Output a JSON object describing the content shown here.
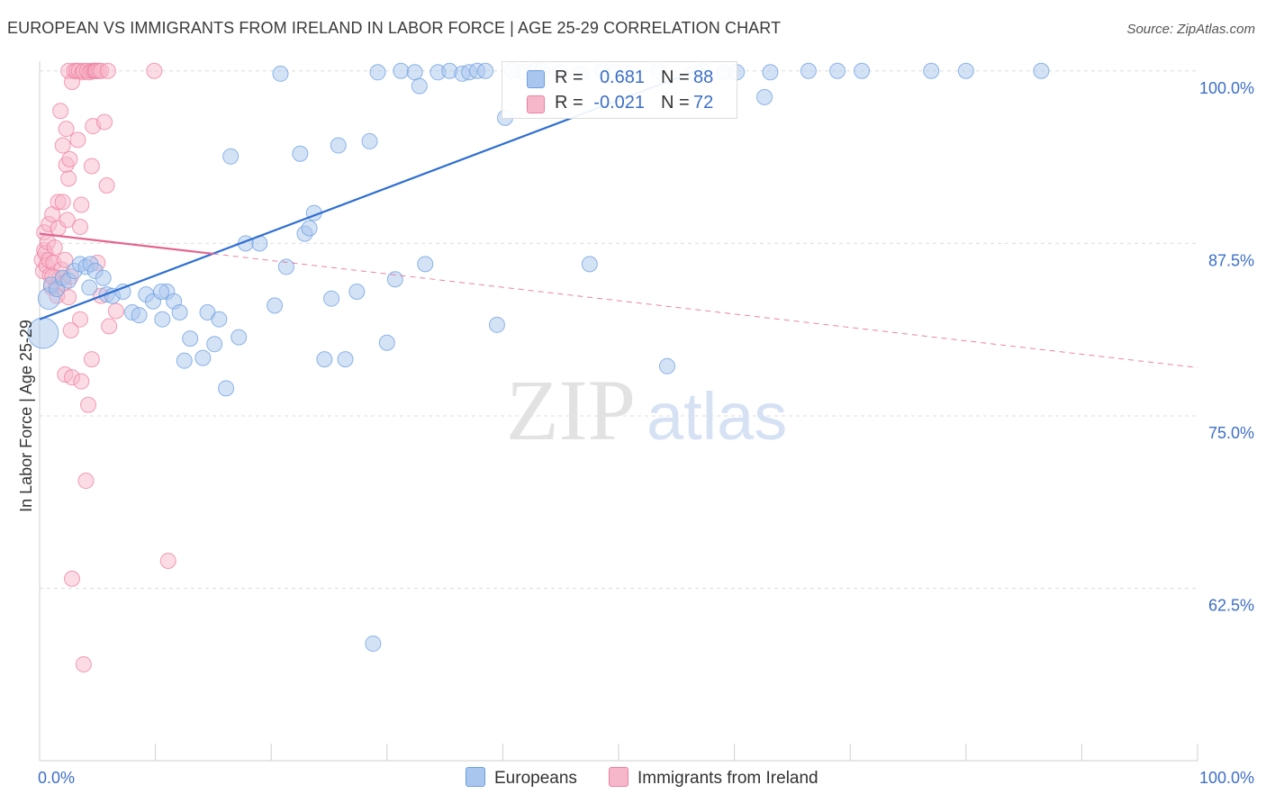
{
  "title": "EUROPEAN VS IMMIGRANTS FROM IRELAND IN LABOR FORCE | AGE 25-29 CORRELATION CHART",
  "source": "Source: ZipAtlas.com",
  "watermark": {
    "zip": "ZIP",
    "atlas": "atlas"
  },
  "colors": {
    "blue_fill": "#a9c6ee",
    "blue_stroke": "#6b9fe0",
    "blue_line": "#2f6fd0",
    "pink_fill": "#f7b7ca",
    "pink_stroke": "#ee7fa0",
    "pink_line": "#e4648f",
    "axis_label": "#3d6fc7",
    "grid": "#dddddd"
  },
  "stats": [
    {
      "label_r": "R =",
      "r": "0.681",
      "label_n": "N =",
      "n": "88",
      "color": "#a9c6ee",
      "border": "#6b9fe0"
    },
    {
      "label_r": "R =",
      "r": "-0.021",
      "label_n": "N =",
      "n": "72",
      "color": "#f7b7ca",
      "border": "#ee7fa0"
    }
  ],
  "legend": [
    {
      "label": "Europeans",
      "color": "#a9c6ee",
      "border": "#6b9fe0"
    },
    {
      "label": "Immigrants from Ireland",
      "color": "#f7b7ca",
      "border": "#ee7fa0"
    }
  ],
  "chart_data": {
    "type": "scatter",
    "title": "EUROPEAN VS IMMIGRANTS FROM IRELAND IN LABOR FORCE | AGE 25-29 CORRELATION CHART",
    "xlabel": "",
    "ylabel": "In Labor Force | Age 25-29",
    "xlim": [
      0,
      100
    ],
    "ylim": [
      52,
      101.5
    ],
    "x_tick_labels": [
      {
        "value": 0,
        "label": "0.0%"
      },
      {
        "value": 100,
        "label": "100.0%"
      }
    ],
    "y_tick_labels": [
      {
        "value": 100,
        "label": "100.0%"
      },
      {
        "value": 87.5,
        "label": "87.5%"
      },
      {
        "value": 75,
        "label": "75.0%"
      },
      {
        "value": 62.5,
        "label": "62.5%"
      }
    ],
    "series": [
      {
        "name": "Europeans",
        "color": "#a9c6ee",
        "trend": {
          "x": [
            0,
            56.7
          ],
          "y": [
            82.0,
            100.0
          ],
          "style": "solid"
        },
        "points": [
          {
            "x": 0.3,
            "y": 81.0,
            "s": 2
          },
          {
            "x": 0.8,
            "y": 83.5,
            "s": 1.4
          },
          {
            "x": 1.0,
            "y": 84.5
          },
          {
            "x": 1.5,
            "y": 84.2
          },
          {
            "x": 2.0,
            "y": 85.0
          },
          {
            "x": 2.5,
            "y": 84.8
          },
          {
            "x": 3.0,
            "y": 85.5
          },
          {
            "x": 3.5,
            "y": 86.0
          },
          {
            "x": 4.0,
            "y": 85.8
          },
          {
            "x": 4.4,
            "y": 86.0
          },
          {
            "x": 4.8,
            "y": 85.5
          },
          {
            "x": 4.3,
            "y": 84.3
          },
          {
            "x": 5.5,
            "y": 85.0
          },
          {
            "x": 5.8,
            "y": 83.8
          },
          {
            "x": 6.3,
            "y": 83.7
          },
          {
            "x": 7.2,
            "y": 84.0
          },
          {
            "x": 8.0,
            "y": 82.5
          },
          {
            "x": 8.6,
            "y": 82.3
          },
          {
            "x": 9.2,
            "y": 83.8
          },
          {
            "x": 9.8,
            "y": 83.3
          },
          {
            "x": 10.6,
            "y": 82.0
          },
          {
            "x": 11.0,
            "y": 84.0
          },
          {
            "x": 11.6,
            "y": 83.3
          },
          {
            "x": 12.1,
            "y": 82.5
          },
          {
            "x": 10.5,
            "y": 84.0
          },
          {
            "x": 12.5,
            "y": 79.0
          },
          {
            "x": 13.0,
            "y": 80.6
          },
          {
            "x": 14.1,
            "y": 79.2
          },
          {
            "x": 14.5,
            "y": 82.5
          },
          {
            "x": 15.1,
            "y": 80.2
          },
          {
            "x": 15.5,
            "y": 82.0
          },
          {
            "x": 16.1,
            "y": 77.0
          },
          {
            "x": 16.5,
            "y": 93.8
          },
          {
            "x": 17.2,
            "y": 80.7
          },
          {
            "x": 17.8,
            "y": 87.5
          },
          {
            "x": 19.0,
            "y": 87.5
          },
          {
            "x": 20.3,
            "y": 83.0
          },
          {
            "x": 20.8,
            "y": 99.8
          },
          {
            "x": 21.3,
            "y": 85.8
          },
          {
            "x": 22.5,
            "y": 94.0
          },
          {
            "x": 22.9,
            "y": 88.2
          },
          {
            "x": 23.3,
            "y": 88.6
          },
          {
            "x": 23.7,
            "y": 89.7
          },
          {
            "x": 24.6,
            "y": 79.1
          },
          {
            "x": 25.2,
            "y": 83.5
          },
          {
            "x": 25.8,
            "y": 94.6
          },
          {
            "x": 26.4,
            "y": 79.1
          },
          {
            "x": 27.4,
            "y": 84.0
          },
          {
            "x": 28.5,
            "y": 94.9
          },
          {
            "x": 29.2,
            "y": 99.9
          },
          {
            "x": 30.0,
            "y": 80.3
          },
          {
            "x": 30.7,
            "y": 84.9
          },
          {
            "x": 31.2,
            "y": 100
          },
          {
            "x": 32.4,
            "y": 99.9
          },
          {
            "x": 32.8,
            "y": 98.9
          },
          {
            "x": 33.3,
            "y": 86.0
          },
          {
            "x": 34.4,
            "y": 99.9
          },
          {
            "x": 35.4,
            "y": 100
          },
          {
            "x": 36.5,
            "y": 99.8
          },
          {
            "x": 37.1,
            "y": 99.9
          },
          {
            "x": 37.8,
            "y": 100
          },
          {
            "x": 38.5,
            "y": 100
          },
          {
            "x": 39.5,
            "y": 81.6
          },
          {
            "x": 40.2,
            "y": 96.6
          },
          {
            "x": 40.8,
            "y": 100
          },
          {
            "x": 41.8,
            "y": 99.9
          },
          {
            "x": 42.8,
            "y": 100
          },
          {
            "x": 43.4,
            "y": 100
          },
          {
            "x": 44.9,
            "y": 99.9
          },
          {
            "x": 46.7,
            "y": 99.8
          },
          {
            "x": 47.5,
            "y": 86.0
          },
          {
            "x": 48.6,
            "y": 100
          },
          {
            "x": 49.6,
            "y": 99.9
          },
          {
            "x": 51.0,
            "y": 99.8
          },
          {
            "x": 53.4,
            "y": 100
          },
          {
            "x": 54.2,
            "y": 78.6
          },
          {
            "x": 56.4,
            "y": 99.8
          },
          {
            "x": 57.3,
            "y": 100
          },
          {
            "x": 59.1,
            "y": 99.9
          },
          {
            "x": 60.2,
            "y": 99.9
          },
          {
            "x": 62.6,
            "y": 98.1
          },
          {
            "x": 63.1,
            "y": 99.9
          },
          {
            "x": 66.4,
            "y": 100
          },
          {
            "x": 68.9,
            "y": 100
          },
          {
            "x": 71.0,
            "y": 100
          },
          {
            "x": 77.0,
            "y": 100
          },
          {
            "x": 80.0,
            "y": 100
          },
          {
            "x": 86.5,
            "y": 100
          },
          {
            "x": 28.8,
            "y": 58.5
          }
        ]
      },
      {
        "name": "Immigrants from Ireland",
        "color": "#f7b7ca",
        "trend": {
          "x": [
            0,
            100
          ],
          "y": [
            88.2,
            78.5
          ],
          "style": "solid-then-dashed",
          "solid_until_x": 15
        },
        "points": [
          {
            "x": 0.2,
            "y": 86.3
          },
          {
            "x": 0.3,
            "y": 85.5
          },
          {
            "x": 0.4,
            "y": 87.0
          },
          {
            "x": 0.4,
            "y": 88.3
          },
          {
            "x": 0.5,
            "y": 86.8
          },
          {
            "x": 0.6,
            "y": 85.9
          },
          {
            "x": 0.7,
            "y": 87.6
          },
          {
            "x": 0.8,
            "y": 86.3
          },
          {
            "x": 0.8,
            "y": 88.9
          },
          {
            "x": 0.9,
            "y": 85.2
          },
          {
            "x": 1.0,
            "y": 84.3
          },
          {
            "x": 1.1,
            "y": 89.6
          },
          {
            "x": 1.2,
            "y": 86.1
          },
          {
            "x": 1.3,
            "y": 87.2
          },
          {
            "x": 1.4,
            "y": 84.4
          },
          {
            "x": 1.5,
            "y": 83.7
          },
          {
            "x": 1.6,
            "y": 88.6
          },
          {
            "x": 1.6,
            "y": 90.5
          },
          {
            "x": 1.7,
            "y": 85.0
          },
          {
            "x": 1.8,
            "y": 97.1
          },
          {
            "x": 1.9,
            "y": 85.6
          },
          {
            "x": 2.0,
            "y": 90.5
          },
          {
            "x": 2.0,
            "y": 94.6
          },
          {
            "x": 2.1,
            "y": 84.6
          },
          {
            "x": 2.2,
            "y": 86.3
          },
          {
            "x": 2.2,
            "y": 78.0
          },
          {
            "x": 2.3,
            "y": 95.8
          },
          {
            "x": 2.3,
            "y": 93.2
          },
          {
            "x": 2.4,
            "y": 89.2
          },
          {
            "x": 2.5,
            "y": 92.2
          },
          {
            "x": 2.5,
            "y": 83.6
          },
          {
            "x": 2.5,
            "y": 100
          },
          {
            "x": 2.6,
            "y": 93.6
          },
          {
            "x": 2.7,
            "y": 85.1
          },
          {
            "x": 2.7,
            "y": 81.2
          },
          {
            "x": 2.8,
            "y": 99.2
          },
          {
            "x": 2.8,
            "y": 77.8
          },
          {
            "x": 2.8,
            "y": 63.2
          },
          {
            "x": 3.0,
            "y": 100
          },
          {
            "x": 3.2,
            "y": 100
          },
          {
            "x": 3.3,
            "y": 95.0
          },
          {
            "x": 3.4,
            "y": 100
          },
          {
            "x": 3.5,
            "y": 88.7
          },
          {
            "x": 3.5,
            "y": 82.0
          },
          {
            "x": 3.6,
            "y": 90.3
          },
          {
            "x": 3.6,
            "y": 77.5
          },
          {
            "x": 3.7,
            "y": 99.9
          },
          {
            "x": 3.8,
            "y": 100
          },
          {
            "x": 3.8,
            "y": 57.0
          },
          {
            "x": 4.0,
            "y": 70.3
          },
          {
            "x": 4.1,
            "y": 100
          },
          {
            "x": 4.2,
            "y": 75.8
          },
          {
            "x": 4.3,
            "y": 99.9
          },
          {
            "x": 4.5,
            "y": 100
          },
          {
            "x": 4.5,
            "y": 79.1
          },
          {
            "x": 4.5,
            "y": 93.1
          },
          {
            "x": 4.6,
            "y": 96.0
          },
          {
            "x": 4.7,
            "y": 100
          },
          {
            "x": 4.8,
            "y": 100
          },
          {
            "x": 4.9,
            "y": 100
          },
          {
            "x": 5.0,
            "y": 86.1
          },
          {
            "x": 5.1,
            "y": 100
          },
          {
            "x": 5.3,
            "y": 83.7
          },
          {
            "x": 5.3,
            "y": 100
          },
          {
            "x": 5.6,
            "y": 96.3
          },
          {
            "x": 5.8,
            "y": 91.7
          },
          {
            "x": 5.9,
            "y": 100
          },
          {
            "x": 6.0,
            "y": 81.5
          },
          {
            "x": 6.6,
            "y": 82.6
          },
          {
            "x": 9.9,
            "y": 100
          },
          {
            "x": 11.1,
            "y": 64.5
          },
          {
            "x": 1.1,
            "y": 85.1
          }
        ]
      }
    ]
  }
}
